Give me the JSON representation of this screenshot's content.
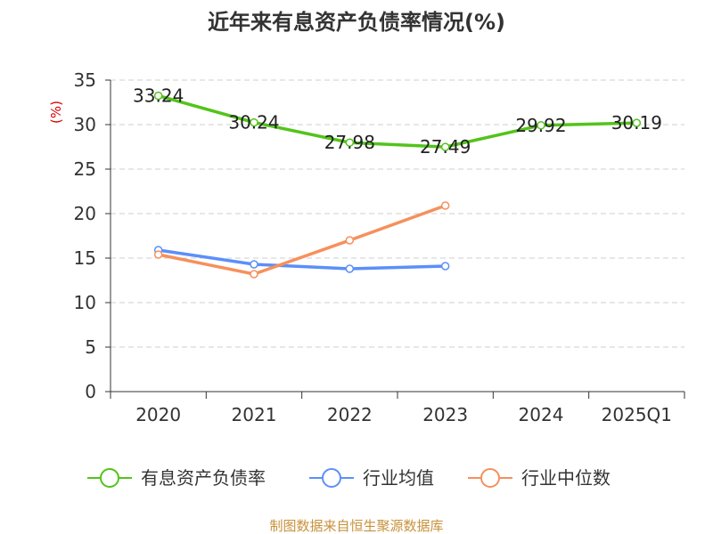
{
  "chart_data": {
    "type": "line",
    "title": "近年来有息资产负债率情况(%)",
    "ylabel": "(%)",
    "xlabel": "",
    "categories": [
      "2020",
      "2021",
      "2022",
      "2023",
      "2024",
      "2025Q1"
    ],
    "ylim": [
      0,
      35
    ],
    "yticks": [
      0,
      5,
      10,
      15,
      20,
      25,
      30,
      35
    ],
    "grid": true,
    "legend_position": "bottom",
    "series": [
      {
        "name": "有息资产负债率",
        "color": "#52c41a",
        "values": [
          33.24,
          30.24,
          27.98,
          27.49,
          29.92,
          30.19
        ],
        "labels": [
          "33.24",
          "30.24",
          "27.98",
          "27.49",
          "29.92",
          "30.19"
        ]
      },
      {
        "name": "行业均值",
        "color": "#5b8ff9",
        "values": [
          15.9,
          14.3,
          13.8,
          14.1,
          null,
          null
        ]
      },
      {
        "name": "行业中位数",
        "color": "#f6905c",
        "values": [
          15.4,
          13.2,
          17.0,
          20.9,
          null,
          null
        ]
      }
    ]
  },
  "source": "制图数据来自恒生聚源数据库"
}
